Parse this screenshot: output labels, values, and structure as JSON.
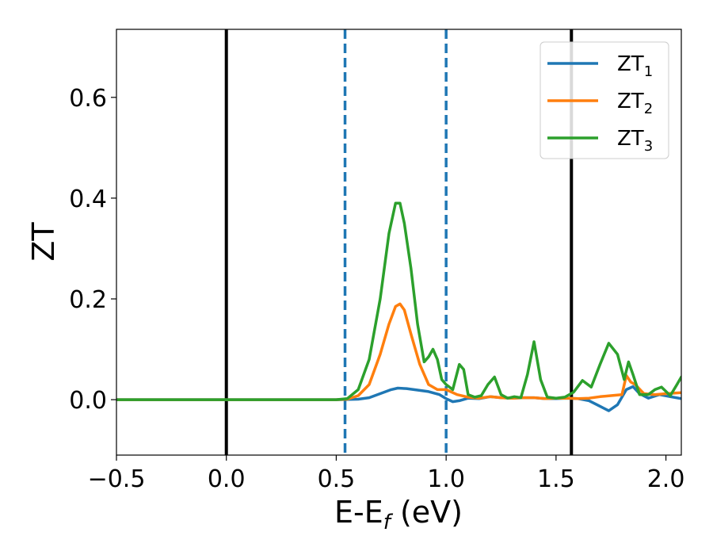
{
  "chart_data": {
    "type": "line",
    "xlabel": "E-E",
    "xlabel_sub": "f",
    "xlabel_unit": " (eV)",
    "ylabel": "ZT",
    "xlim": [
      -0.5,
      2.07
    ],
    "ylim": [
      -0.11,
      0.735
    ],
    "xticks": [
      {
        "value": -0.5,
        "label": "−0.5"
      },
      {
        "value": 0.0,
        "label": "0.0"
      },
      {
        "value": 0.5,
        "label": "0.5"
      },
      {
        "value": 1.0,
        "label": "1.0"
      },
      {
        "value": 1.5,
        "label": "1.5"
      },
      {
        "value": 2.0,
        "label": "2.0"
      }
    ],
    "yticks": [
      {
        "value": 0.0,
        "label": "0.0"
      },
      {
        "value": 0.2,
        "label": "0.2"
      },
      {
        "value": 0.4,
        "label": "0.4"
      },
      {
        "value": 0.6,
        "label": "0.6"
      }
    ],
    "legend_position": "top-right",
    "vlines": [
      {
        "x": 0.0,
        "style": "solid",
        "color": "#000000"
      },
      {
        "x": 0.54,
        "style": "dashed",
        "color": "#1f77b4"
      },
      {
        "x": 1.0,
        "style": "dashed",
        "color": "#1f77b4"
      },
      {
        "x": 1.57,
        "style": "solid",
        "color": "#000000"
      }
    ],
    "series": [
      {
        "name": "ZT",
        "sub": "1",
        "color": "#1f77b4",
        "x": [
          -0.5,
          0.5,
          0.6,
          0.65,
          0.7,
          0.75,
          0.78,
          0.82,
          0.87,
          0.92,
          0.97,
          1.0,
          1.03,
          1.06,
          1.1,
          1.15,
          1.2,
          1.25,
          1.3,
          1.35,
          1.4,
          1.45,
          1.5,
          1.55,
          1.6,
          1.65,
          1.7,
          1.74,
          1.78,
          1.82,
          1.85,
          1.88,
          1.92,
          1.97,
          2.02,
          2.07
        ],
        "y": [
          0.0,
          0.0,
          0.001,
          0.004,
          0.012,
          0.02,
          0.023,
          0.022,
          0.019,
          0.016,
          0.01,
          0.002,
          -0.004,
          -0.002,
          0.003,
          0.002,
          0.006,
          0.004,
          0.003,
          0.004,
          0.004,
          0.002,
          0.002,
          0.003,
          0.002,
          -0.002,
          -0.013,
          -0.022,
          -0.01,
          0.02,
          0.026,
          0.012,
          0.003,
          0.01,
          0.006,
          0.002
        ]
      },
      {
        "name": "ZT",
        "sub": "2",
        "color": "#ff7f0e",
        "x": [
          -0.5,
          0.5,
          0.55,
          0.6,
          0.65,
          0.7,
          0.74,
          0.77,
          0.79,
          0.81,
          0.84,
          0.88,
          0.92,
          0.96,
          1.0,
          1.05,
          1.1,
          1.15,
          1.2,
          1.25,
          1.3,
          1.35,
          1.4,
          1.45,
          1.5,
          1.55,
          1.6,
          1.65,
          1.7,
          1.75,
          1.8,
          1.82,
          1.84,
          1.86,
          1.9,
          1.95,
          2.0,
          2.07
        ],
        "y": [
          0.0,
          0.0,
          0.001,
          0.008,
          0.03,
          0.09,
          0.15,
          0.185,
          0.19,
          0.178,
          0.13,
          0.07,
          0.03,
          0.02,
          0.02,
          0.01,
          0.005,
          0.003,
          0.006,
          0.004,
          0.003,
          0.004,
          0.004,
          0.002,
          0.003,
          0.003,
          0.002,
          0.003,
          0.006,
          0.008,
          0.01,
          0.048,
          0.035,
          0.03,
          0.012,
          0.01,
          0.012,
          0.014
        ]
      },
      {
        "name": "ZT",
        "sub": "3",
        "color": "#2ca02c",
        "x": [
          -0.5,
          0.5,
          0.55,
          0.6,
          0.65,
          0.7,
          0.74,
          0.77,
          0.79,
          0.81,
          0.84,
          0.87,
          0.9,
          0.92,
          0.94,
          0.96,
          0.98,
          1.0,
          1.03,
          1.06,
          1.08,
          1.1,
          1.13,
          1.16,
          1.19,
          1.22,
          1.25,
          1.28,
          1.31,
          1.34,
          1.37,
          1.4,
          1.43,
          1.46,
          1.5,
          1.54,
          1.58,
          1.62,
          1.66,
          1.7,
          1.74,
          1.78,
          1.81,
          1.83,
          1.85,
          1.88,
          1.92,
          1.95,
          1.98,
          2.02,
          2.05,
          2.07
        ],
        "y": [
          0.0,
          0.0,
          0.002,
          0.02,
          0.08,
          0.2,
          0.33,
          0.39,
          0.39,
          0.35,
          0.26,
          0.15,
          0.075,
          0.085,
          0.1,
          0.08,
          0.04,
          0.03,
          0.02,
          0.07,
          0.06,
          0.01,
          0.005,
          0.008,
          0.03,
          0.045,
          0.01,
          0.003,
          0.006,
          0.004,
          0.05,
          0.115,
          0.04,
          0.005,
          0.003,
          0.005,
          0.015,
          0.038,
          0.025,
          0.07,
          0.112,
          0.09,
          0.04,
          0.075,
          0.05,
          0.01,
          0.01,
          0.02,
          0.025,
          0.008,
          0.03,
          0.045
        ]
      }
    ]
  }
}
